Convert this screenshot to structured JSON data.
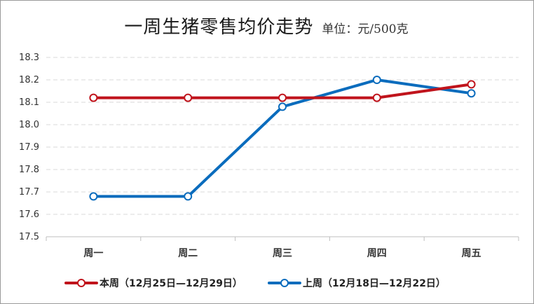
{
  "title": "一周生猪零售均价走势",
  "unit": "单位：元/500克",
  "chart_data": {
    "type": "line",
    "categories": [
      "周一",
      "周二",
      "周三",
      "周四",
      "周五"
    ],
    "y_ticks": [
      "17.5",
      "17.6",
      "17.7",
      "17.8",
      "17.9",
      "18.0",
      "18.1",
      "18.2",
      "18.3"
    ],
    "ylim": [
      17.5,
      18.3
    ],
    "grid": true,
    "legend_position": "bottom",
    "series": [
      {
        "name": "本周（12月25日—12月29日）",
        "color": "#c0141c",
        "values": [
          18.12,
          18.12,
          18.12,
          18.12,
          18.18
        ]
      },
      {
        "name": "上周（12月18日—12月22日）",
        "color": "#0a6cbd",
        "values": [
          17.68,
          17.68,
          18.08,
          18.2,
          18.14
        ]
      }
    ]
  }
}
